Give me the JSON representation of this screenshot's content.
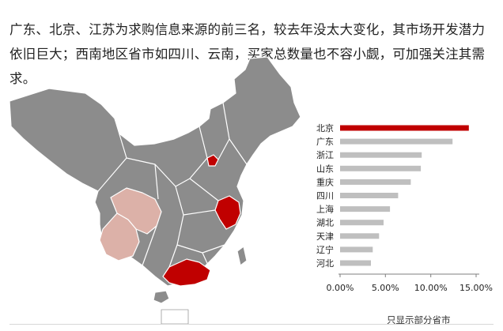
{
  "intro_text": "广东、北京、江苏为求购信息来源的前三名，较去年没太大变化，其市场开发潜力依旧巨大；西南地区省市如四川、云南，买家总数量也不容小觑，可加强关注其需求。",
  "footnote": "只显示部分省市",
  "map": {
    "base_color": "#8c8c8c",
    "border_color": "#ffffff",
    "highlight_color": "#c00000",
    "secondary_color": "#dcb1a8",
    "highlighted_regions": [
      "广东",
      "北京",
      "江苏"
    ],
    "secondary_regions": [
      "四川",
      "云南"
    ]
  },
  "chart_data": {
    "type": "bar",
    "orientation": "horizontal",
    "categories": [
      "北京",
      "广东",
      "浙江",
      "山东",
      "重庆",
      "四川",
      "上海",
      "湖北",
      "天津",
      "辽宁",
      "河北"
    ],
    "values": [
      14.2,
      12.4,
      9.0,
      8.9,
      7.8,
      6.4,
      5.5,
      4.8,
      4.3,
      3.6,
      3.4
    ],
    "xlim": [
      0,
      15
    ],
    "xticks": [
      "0.00%",
      "5.00%",
      "10.00%",
      "15.00%"
    ],
    "bar_color": "#bfbfbf",
    "highlight_color": "#c00000",
    "highlight_index": 0,
    "grid": false,
    "legend": "none"
  }
}
